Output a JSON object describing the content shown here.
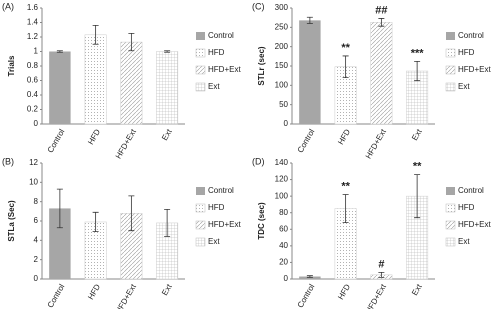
{
  "chart_data": [
    {
      "type": "bar",
      "label": "(A)",
      "y_label": "Trials",
      "categories": [
        "Control",
        "HFD",
        "HFD+Ext",
        "Ext"
      ],
      "values": [
        1.0,
        1.23,
        1.13,
        1.0
      ],
      "errors": [
        0.01,
        0.13,
        0.12,
        0.01
      ],
      "patterns": [
        "solid",
        "dots",
        "diagonal",
        "grid"
      ],
      "color": "#a6a6a6",
      "ylim": [
        0,
        1.6
      ],
      "yticks": [
        0,
        0.2,
        0.4,
        0.6,
        0.8,
        1,
        1.2,
        1.4,
        1.6
      ]
    },
    {
      "type": "bar",
      "label": "(B)",
      "y_label": "STLa (Sec)",
      "categories": [
        "Control",
        "HFD",
        "HFD+Ext",
        "Ext"
      ],
      "values": [
        7.3,
        5.9,
        6.8,
        5.8
      ],
      "errors": [
        2.0,
        1.0,
        1.8,
        1.4
      ],
      "patterns": [
        "solid",
        "dots",
        "diagonal",
        "grid"
      ],
      "color": "#a6a6a6",
      "ylim": [
        0,
        12
      ],
      "yticks": [
        0,
        2,
        4,
        6,
        8,
        10,
        12
      ]
    },
    {
      "type": "bar",
      "label": "(C)",
      "y_label": "STLr (sec)",
      "categories": [
        "Control",
        "HFD",
        "HFD+Ext",
        "Ext"
      ],
      "values": [
        268,
        148,
        263,
        137
      ],
      "errors": [
        8,
        28,
        10,
        25
      ],
      "annotations": [
        null,
        "**",
        "##",
        "***"
      ],
      "patterns": [
        "solid",
        "dots",
        "diagonal",
        "grid"
      ],
      "color": "#a6a6a6",
      "ylim": [
        0,
        300
      ],
      "yticks": [
        0,
        50,
        100,
        150,
        200,
        250,
        300
      ]
    },
    {
      "type": "bar",
      "label": "(D)",
      "y_label": "TDC (sec)",
      "categories": [
        "Control",
        "HFD",
        "HFD+Ext",
        "Ext"
      ],
      "values": [
        3,
        85,
        5,
        100
      ],
      "errors": [
        1,
        17,
        3,
        26
      ],
      "annotations": [
        null,
        "**",
        "#",
        "**"
      ],
      "patterns": [
        "solid",
        "dots",
        "diagonal",
        "grid"
      ],
      "color": "#a6a6a6",
      "ylim": [
        0,
        140
      ],
      "yticks": [
        0,
        20,
        40,
        60,
        80,
        100,
        120,
        140
      ]
    }
  ]
}
